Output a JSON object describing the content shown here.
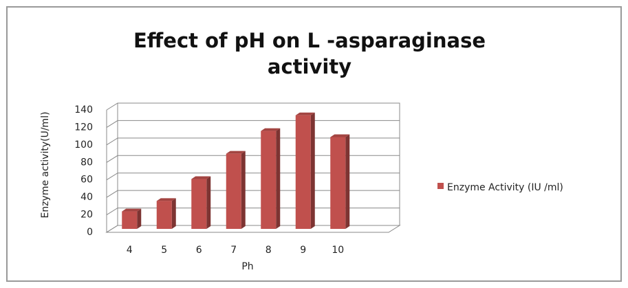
{
  "chart_data": {
    "type": "bar",
    "title": "Effect of pH on L -asparaginase activity",
    "x_label": "Ph",
    "y_label": "Enzyme activity(U/ml)",
    "categories": [
      "4",
      "5",
      "6",
      "7",
      "8",
      "9",
      "10"
    ],
    "series": [
      {
        "name": "Enzyme Activity (IU /ml)",
        "color": "#c0504d",
        "values": [
          20,
          32,
          57,
          86,
          112,
          130,
          105
        ]
      }
    ],
    "ylim": [
      0,
      140
    ],
    "yticks": [
      0,
      20,
      40,
      60,
      80,
      100,
      120,
      140
    ],
    "grid": true,
    "legend": "right"
  }
}
